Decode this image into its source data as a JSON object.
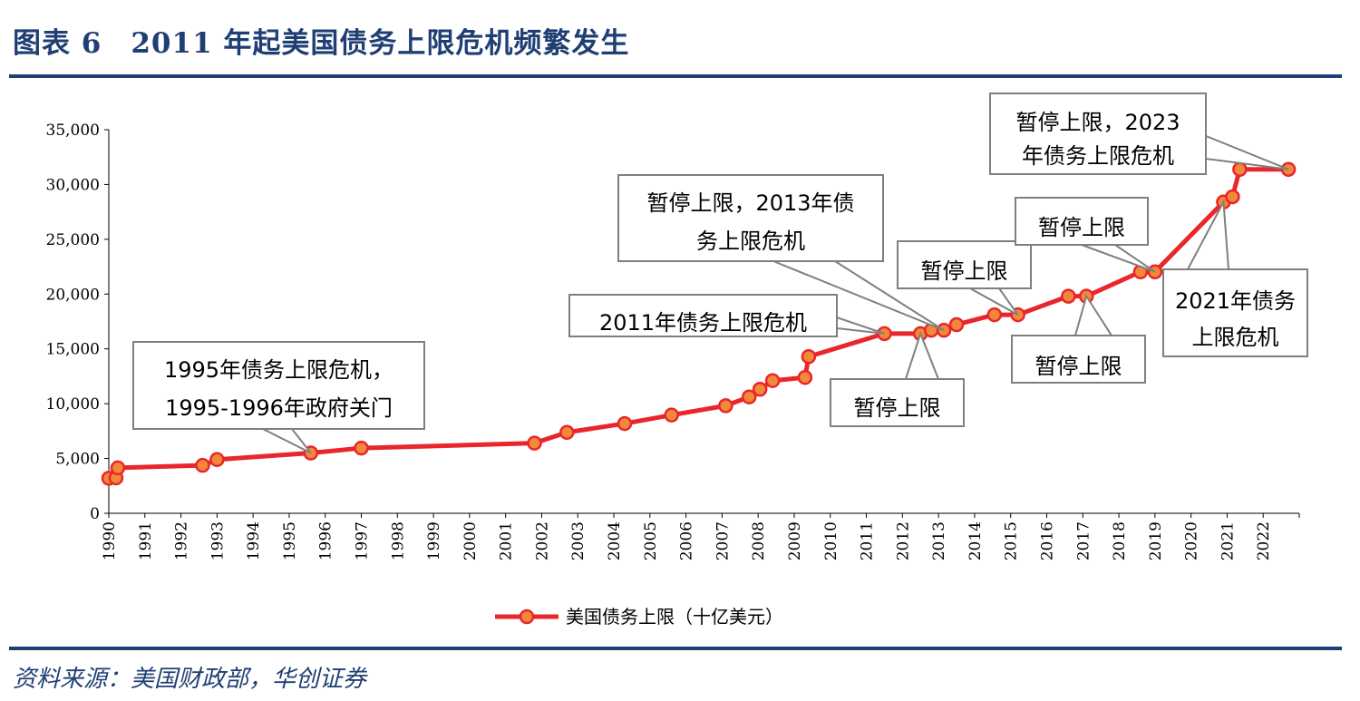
{
  "page": {
    "title": "图表 6　2011 年起美国债务上限危机频繁发生",
    "source": "资料来源：美国财政部，华创证券"
  },
  "colors": {
    "line": "#e8262b",
    "marker_fill": "#f4883a",
    "marker_edge": "#e8262b",
    "title": "#1f3f74",
    "callout_edge": "#7f7f7f"
  },
  "chart_data": {
    "type": "line",
    "title": "",
    "xlabel": "",
    "ylabel": "",
    "xlim": [
      1990,
      2023
    ],
    "ylim": [
      0,
      35000
    ],
    "y_ticks": [
      "0",
      "5,000",
      "10,000",
      "15,000",
      "20,000",
      "25,000",
      "30,000",
      "35,000"
    ],
    "x_ticks": [
      "1990",
      "1991",
      "1992",
      "1993",
      "1994",
      "1995",
      "1996",
      "1997",
      "1998",
      "1999",
      "2000",
      "2001",
      "2002",
      "2003",
      "2004",
      "2005",
      "2006",
      "2007",
      "2008",
      "2009",
      "2010",
      "2011",
      "2012",
      "2013",
      "2014",
      "2015",
      "2016",
      "2017",
      "2018",
      "2019",
      "2020",
      "2021",
      "2022"
    ],
    "series": [
      {
        "name": "美国债务上限（十亿美元）",
        "points": [
          [
            1990.0,
            3195
          ],
          [
            1990.2,
            3230
          ],
          [
            1990.25,
            4145
          ],
          [
            1992.6,
            4370
          ],
          [
            1993.0,
            4900
          ],
          [
            1995.6,
            5500
          ],
          [
            1997.0,
            5950
          ],
          [
            2001.8,
            6400
          ],
          [
            2002.7,
            7384
          ],
          [
            2004.3,
            8184
          ],
          [
            2005.6,
            8965
          ],
          [
            2007.1,
            9815
          ],
          [
            2007.75,
            10615
          ],
          [
            2008.05,
            11315
          ],
          [
            2008.4,
            12104
          ],
          [
            2009.3,
            12394
          ],
          [
            2009.4,
            14294
          ],
          [
            2011.5,
            16394
          ],
          [
            2012.5,
            16394
          ],
          [
            2012.8,
            16699
          ],
          [
            2013.15,
            16699
          ],
          [
            2013.5,
            17212
          ],
          [
            2014.55,
            18113
          ],
          [
            2015.2,
            18113
          ],
          [
            2016.6,
            19808
          ],
          [
            2017.1,
            19808
          ],
          [
            2018.6,
            22030
          ],
          [
            2019.0,
            22030
          ],
          [
            2020.9,
            28401
          ],
          [
            2021.15,
            28881
          ],
          [
            2021.35,
            31381
          ],
          [
            2022.7,
            31381
          ]
        ]
      }
    ],
    "legend": {
      "label": "美国债务上限（十亿美元）",
      "position": "bottom"
    },
    "annotations": [
      {
        "lines": [
          "1995年债务上限危机，",
          "1995-1996年政府关门"
        ],
        "target": [
          1995.6,
          5500
        ]
      },
      {
        "lines": [
          "暂停上限，2013年债",
          "务上限危机"
        ],
        "target": [
          2013.15,
          16699
        ]
      },
      {
        "lines": [
          "2011年债务上限危机"
        ],
        "target": [
          2011.5,
          16394
        ]
      },
      {
        "lines": [
          "暂停上限"
        ],
        "target": [
          2012.5,
          16394
        ]
      },
      {
        "lines": [
          "暂停上限"
        ],
        "target": [
          2015.2,
          18113
        ]
      },
      {
        "lines": [
          "暂停上限"
        ],
        "target": [
          2019.0,
          22030
        ]
      },
      {
        "lines": [
          "暂停上限"
        ],
        "target": [
          2017.1,
          19808
        ]
      },
      {
        "lines": [
          "2021年债务",
          "上限危机"
        ],
        "target": [
          2020.9,
          28401
        ]
      },
      {
        "lines": [
          "暂停上限，2023",
          "年债务上限危机"
        ],
        "target": [
          2022.7,
          31381
        ]
      }
    ]
  }
}
